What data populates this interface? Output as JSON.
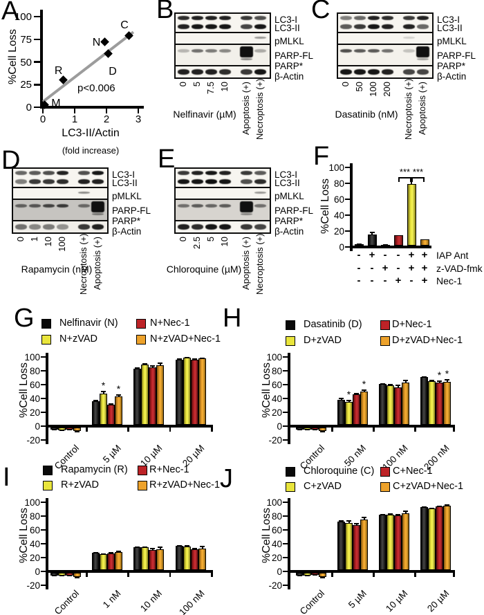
{
  "letters": {
    "A": "A",
    "B": "B",
    "C": "C",
    "D": "D",
    "E": "E",
    "F": "F",
    "G": "G",
    "H": "H",
    "I": "I",
    "J": "J"
  },
  "colors": {
    "black": "#0a0a0a",
    "yellow": "#e9e53c",
    "red": "#bd2327",
    "orange": "#eda22b",
    "trend": "#9c9c9c"
  },
  "chart_data": [
    {
      "id": "A",
      "type": "scatter",
      "xlabel": "LC3-II/Actin",
      "xlabel_sub": "(fold increase)",
      "ylabel": "%Cell Loss",
      "xlim": [
        0,
        3
      ],
      "ylim": [
        0,
        100
      ],
      "xticks": [
        0,
        1,
        2,
        3
      ],
      "yticks": [
        0,
        25,
        50,
        75,
        100
      ],
      "annotation": "p<0.006",
      "points": [
        {
          "label": "M",
          "x": 0.05,
          "y": 3
        },
        {
          "label": "R",
          "x": 0.65,
          "y": 30
        },
        {
          "label": "N",
          "x": 1.95,
          "y": 72
        },
        {
          "label": "D",
          "x": 2.05,
          "y": 59
        },
        {
          "label": "C",
          "x": 2.7,
          "y": 79
        }
      ],
      "trendline": {
        "x1": 0,
        "y1": 6,
        "x2": 2.85,
        "y2": 83
      }
    },
    {
      "id": "F",
      "type": "bar",
      "ylabel": "%Cell Loss",
      "ylim": [
        0,
        100
      ],
      "yticks": [
        0,
        20,
        40,
        60,
        80,
        100
      ],
      "values": [
        1.5,
        14,
        1,
        13,
        77,
        8
      ],
      "errors": [
        0.8,
        3,
        0.5,
        0,
        0,
        0
      ],
      "bar_colors": [
        "black",
        "black",
        "black",
        "red",
        "yellow",
        "orange"
      ],
      "significance": {
        "marks": [
          "***",
          "***"
        ]
      },
      "conditions": [
        {
          "label": "IAP Ant",
          "signs": [
            "-",
            "+",
            "-",
            "-",
            "+",
            "+"
          ]
        },
        {
          "label": "z-VAD-fmk",
          "signs": [
            "-",
            "-",
            "+",
            "-",
            "+",
            "+"
          ]
        },
        {
          "label": "Nec-1",
          "signs": [
            "-",
            "-",
            "-",
            "+",
            "-",
            "+"
          ]
        }
      ]
    },
    {
      "id": "G",
      "type": "grouped-bar",
      "ylabel": "%Cell Loss",
      "ylim": [
        -20,
        100
      ],
      "yticks": [
        -20,
        0,
        20,
        40,
        60,
        80,
        100
      ],
      "categories": [
        "Control",
        "5 µM",
        "10 µM",
        "20 µM"
      ],
      "series": [
        {
          "name": "Nelfinavir (N)",
          "color": "black",
          "values": [
            -3,
            34,
            81,
            94
          ],
          "errors": [
            1,
            2,
            2,
            2
          ]
        },
        {
          "name": "N+zVAD",
          "color": "yellow",
          "values": [
            -4,
            45,
            87,
            97
          ],
          "errors": [
            1,
            4,
            2,
            1
          ]
        },
        {
          "name": "N+Nec-1",
          "color": "red",
          "values": [
            -3,
            29,
            83,
            94
          ],
          "errors": [
            1,
            2,
            3,
            2
          ]
        },
        {
          "name": "N+zVAD+Nec-1",
          "color": "orange",
          "values": [
            -5,
            41,
            86,
            96
          ],
          "errors": [
            2,
            3,
            4,
            1
          ]
        }
      ],
      "significance": [
        {
          "category": 1,
          "series": 1,
          "mark": "*"
        },
        {
          "category": 1,
          "series": 3,
          "mark": "*"
        }
      ]
    },
    {
      "id": "H",
      "type": "grouped-bar",
      "ylabel": "%Cell Loss",
      "ylim": [
        -20,
        100
      ],
      "yticks": [
        -20,
        0,
        20,
        40,
        60,
        80,
        100
      ],
      "categories": [
        "Control",
        "50 nM",
        "100 nM",
        "200 nM"
      ],
      "series": [
        {
          "name": "Dasatinib (D)",
          "color": "black",
          "values": [
            -3,
            36,
            59,
            69
          ],
          "errors": [
            1,
            3,
            1,
            1
          ]
        },
        {
          "name": "D+zVAD",
          "color": "yellow",
          "values": [
            -3,
            33,
            57,
            63
          ],
          "errors": [
            1,
            3,
            2,
            2
          ]
        },
        {
          "name": "D+Nec-1",
          "color": "red",
          "values": [
            -3,
            44,
            54,
            61
          ],
          "errors": [
            1,
            2,
            4,
            3
          ]
        },
        {
          "name": "D+zVAD+Nec-1",
          "color": "orange",
          "values": [
            -5,
            48,
            61,
            62
          ],
          "errors": [
            2,
            3,
            4,
            4
          ]
        }
      ],
      "significance": [
        {
          "category": 1,
          "series": 1,
          "mark": "*"
        },
        {
          "category": 1,
          "series": 3,
          "mark": "*"
        },
        {
          "category": 3,
          "series": 2,
          "mark": "*"
        },
        {
          "category": 3,
          "series": 3,
          "mark": "*"
        }
      ]
    },
    {
      "id": "I",
      "type": "grouped-bar",
      "ylabel": "%Cell Loss",
      "ylim": [
        -20,
        100
      ],
      "yticks": [
        -20,
        0,
        20,
        40,
        60,
        80,
        100
      ],
      "categories": [
        "Control",
        "1 nM",
        "10 nM",
        "100 nM"
      ],
      "series": [
        {
          "name": "Rapamycin (R)",
          "color": "black",
          "values": [
            -4,
            25,
            33,
            35
          ],
          "errors": [
            1,
            1,
            1,
            1
          ]
        },
        {
          "name": "R+zVAD",
          "color": "yellow",
          "values": [
            -4,
            23,
            33,
            34
          ],
          "errors": [
            1,
            1,
            1,
            2
          ]
        },
        {
          "name": "R+Nec-1",
          "color": "red",
          "values": [
            -4,
            24,
            29,
            30
          ],
          "errors": [
            1,
            2,
            3,
            2
          ]
        },
        {
          "name": "R+zVAD+Nec-1",
          "color": "orange",
          "values": [
            -6,
            26,
            30,
            31
          ],
          "errors": [
            2,
            2,
            4,
            4
          ]
        }
      ],
      "significance": []
    },
    {
      "id": "J",
      "type": "grouped-bar",
      "ylabel": "%Cell Loss",
      "ylim": [
        -20,
        100
      ],
      "yticks": [
        -20,
        0,
        20,
        40,
        60,
        80,
        100
      ],
      "categories": [
        "Control",
        "5 µM",
        "10 µM",
        "20 µM"
      ],
      "series": [
        {
          "name": "Chloroquine (C)",
          "color": "black",
          "values": [
            -4,
            70,
            80,
            91
          ],
          "errors": [
            1,
            2,
            1,
            1
          ]
        },
        {
          "name": "C+zVAD",
          "color": "yellow",
          "values": [
            -4,
            68,
            80,
            89
          ],
          "errors": [
            1,
            4,
            2,
            1
          ]
        },
        {
          "name": "C+Nec-1",
          "color": "red",
          "values": [
            -3,
            65,
            79,
            92
          ],
          "errors": [
            1,
            3,
            2,
            1
          ]
        },
        {
          "name": "C+zVAD+Nec-1",
          "color": "orange",
          "values": [
            -6,
            73,
            82,
            93
          ],
          "errors": [
            2,
            4,
            4,
            2
          ]
        }
      ],
      "significance": []
    }
  ],
  "blots": [
    {
      "id": "B",
      "drug_label": "Nelfinavir (µM)",
      "lanes": [
        "0",
        "5",
        "7.5",
        "10",
        "Apoptosis (+)",
        "Necroptosis (+)"
      ],
      "band_labels": [
        "LC3-I",
        "LC3-II",
        "pMLKL",
        "PARP-FL",
        "PARP*",
        "β-Actin"
      ],
      "rows": [
        {
          "bg": "#f7f5f0",
          "h": 30,
          "bands": [
            {
              "off": 5,
              "bh": 6,
              "vals": [
                0.85,
                0.9,
                0.9,
                0.9,
                0.8,
                0.7
              ]
            },
            {
              "off": 17,
              "bh": 7,
              "vals": [
                0.9,
                0.95,
                0.95,
                0.95,
                0.75,
                0.95
              ]
            }
          ]
        },
        {
          "bg": "#f7f5f0",
          "h": 19,
          "bands": [
            {
              "off": 7,
              "bh": 3,
              "vals": [
                0,
                0,
                0,
                0,
                0,
                0.4
              ]
            }
          ]
        },
        {
          "bg": "#f2f0ea",
          "h": 33,
          "blob": 4,
          "bands": [
            {
              "off": 8,
              "bh": 5,
              "vals": [
                0.25,
                0.55,
                0.5,
                0.45,
                0,
                0.3
              ]
            },
            {
              "off": 21,
              "bh": 3,
              "vals": [
                0,
                0,
                0,
                0,
                0.45,
                0
              ]
            }
          ]
        },
        {
          "bg": "#f7f5f0",
          "h": 20,
          "bands": [
            {
              "off": 6,
              "bh": 8,
              "vals": [
                0.9,
                0.9,
                0.9,
                0.85,
                0.8,
                0.95
              ]
            }
          ]
        }
      ]
    },
    {
      "id": "C",
      "drug_label": "Dasatinib (nM)",
      "lanes": [
        "0",
        "50",
        "100",
        "200",
        "Necroptosis (+)",
        "Apoptosis (+)"
      ],
      "band_labels": [
        "LC3-I",
        "LC3-II",
        "pMLKL",
        "PARP-FL",
        "PARP*",
        "β-Actin"
      ],
      "rows": [
        {
          "bg": "#f7f5f0",
          "h": 30,
          "bands": [
            {
              "off": 5,
              "bh": 6,
              "vals": [
                0.5,
                0.6,
                0.9,
                0.85,
                0.8,
                0.9
              ]
            },
            {
              "off": 17,
              "bh": 7,
              "vals": [
                0.65,
                0.8,
                0.95,
                0.9,
                0.9,
                0.6
              ]
            }
          ]
        },
        {
          "bg": "#f7f5f0",
          "h": 19,
          "bands": [
            {
              "off": 7,
              "bh": 3,
              "vals": [
                0,
                0,
                0,
                0,
                0.15,
                0
              ]
            }
          ]
        },
        {
          "bg": "#f4f2ec",
          "h": 33,
          "blob": 5,
          "bands": [
            {
              "off": 8,
              "bh": 5,
              "vals": [
                0.7,
                0.65,
                0.65,
                0.55,
                0.2,
                0
              ]
            },
            {
              "off": 21,
              "bh": 3,
              "vals": [
                0,
                0,
                0,
                0,
                0,
                0.35
              ]
            }
          ]
        },
        {
          "bg": "#f7f5f0",
          "h": 20,
          "bands": [
            {
              "off": 6,
              "bh": 8,
              "vals": [
                0.95,
                0.95,
                0.95,
                0.9,
                0.75,
                0.75
              ]
            }
          ]
        }
      ]
    },
    {
      "id": "D",
      "drug_label": "Rapamycin (nM)",
      "lanes": [
        "0",
        "1",
        "10",
        "100",
        "Necroptosis (+)",
        "Apoptosis (+)"
      ],
      "band_labels": [
        "LC3-I",
        "LC3-II",
        "pMLKL",
        "PARP-FL",
        "PARP*",
        "β-Actin"
      ],
      "rows": [
        {
          "bg": "#f7f5f0",
          "h": 30,
          "bands": [
            {
              "off": 5,
              "bh": 6,
              "vals": [
                0.6,
                0.65,
                0.7,
                0.9,
                0.7,
                0.95
              ]
            },
            {
              "off": 17,
              "bh": 7,
              "vals": [
                0.5,
                0.8,
                0.8,
                0.85,
                0.9,
                0.9
              ]
            }
          ]
        },
        {
          "bg": "#f7f5f0",
          "h": 19,
          "bands": [
            {
              "off": 7,
              "bh": 3,
              "vals": [
                0,
                0,
                0,
                0,
                0.45,
                0
              ]
            }
          ]
        },
        {
          "bg": "#c6c4c0",
          "h": 33,
          "blob": 5,
          "bands": [
            {
              "off": 8,
              "bh": 5,
              "vals": [
                0.55,
                0.6,
                0.7,
                0.75,
                0.5,
                0
              ]
            },
            {
              "off": 21,
              "bh": 3,
              "vals": [
                0,
                0,
                0,
                0,
                0,
                0.45
              ]
            }
          ]
        },
        {
          "bg": "#f0eee9",
          "h": 20,
          "bands": [
            {
              "off": 6,
              "bh": 8,
              "vals": [
                0.55,
                0.45,
                0.5,
                0.4,
                0.8,
                0.9
              ]
            }
          ]
        }
      ]
    },
    {
      "id": "E",
      "drug_label": "Chloroquine (µM)",
      "lanes": [
        "0",
        "2.5",
        "5",
        "10",
        "Apoptosis (+)",
        "Necroptosis (+)"
      ],
      "band_labels": [
        "LC3-I",
        "LC3-II",
        "pMLKL",
        "PARP-FL",
        "PARP*",
        "β-Actin"
      ],
      "rows": [
        {
          "bg": "#f7f5f0",
          "h": 30,
          "bands": [
            {
              "off": 5,
              "bh": 6,
              "vals": [
                0.8,
                0.9,
                0.95,
                0.9,
                0.8,
                0.65
              ]
            },
            {
              "off": 17,
              "bh": 7,
              "vals": [
                0.95,
                0.95,
                0.98,
                0.95,
                0.7,
                0.85
              ]
            }
          ]
        },
        {
          "bg": "#f7f5f0",
          "h": 19,
          "bands": [
            {
              "off": 7,
              "bh": 3,
              "vals": [
                0,
                0,
                0,
                0,
                0,
                0.4
              ]
            }
          ]
        },
        {
          "bg": "#d7d4cf",
          "h": 33,
          "blob": 4,
          "bands": [
            {
              "off": 8,
              "bh": 5,
              "vals": [
                0.5,
                0.6,
                0.55,
                0.6,
                0,
                0.5
              ]
            },
            {
              "off": 21,
              "bh": 3,
              "vals": [
                0,
                0,
                0,
                0,
                0.4,
                0
              ]
            }
          ]
        },
        {
          "bg": "#f7f5f0",
          "h": 20,
          "bands": [
            {
              "off": 6,
              "bh": 8,
              "vals": [
                0.9,
                0.85,
                0.95,
                0.95,
                0.8,
                0.75
              ]
            }
          ]
        }
      ]
    }
  ]
}
